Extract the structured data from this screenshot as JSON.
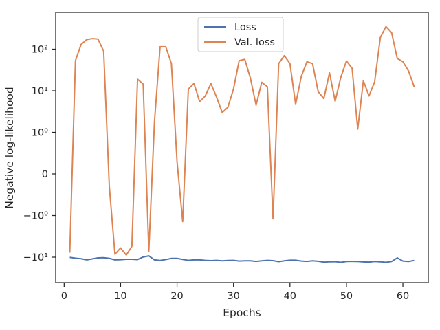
{
  "chart_data": {
    "type": "line",
    "xlabel": "Epochs",
    "ylabel": "Negative log-likelihood",
    "yscale": "symlog",
    "xlim": [
      -1.5,
      64.5
    ],
    "x_ticks": [
      0,
      10,
      20,
      30,
      40,
      50,
      60
    ],
    "y_ticks": [
      {
        "value": -10,
        "label": "−10¹"
      },
      {
        "value": -1,
        "label": "−10⁰"
      },
      {
        "value": 0,
        "label": "0"
      },
      {
        "value": 1,
        "label": "10⁰"
      },
      {
        "value": 10,
        "label": "10¹"
      },
      {
        "value": 100,
        "label": "10²"
      }
    ],
    "grid": false,
    "legend": "upper center",
    "colors": {
      "loss": "#4c72b0",
      "val_loss": "#dd8452",
      "axes": "#262626"
    },
    "x": [
      1,
      2,
      3,
      4,
      5,
      6,
      7,
      8,
      9,
      10,
      11,
      12,
      13,
      14,
      15,
      16,
      17,
      18,
      19,
      20,
      21,
      22,
      23,
      24,
      25,
      26,
      27,
      28,
      29,
      30,
      31,
      32,
      33,
      34,
      35,
      36,
      37,
      38,
      39,
      40,
      41,
      42,
      43,
      44,
      45,
      46,
      47,
      48,
      49,
      50,
      51,
      52,
      53,
      54,
      55,
      56,
      57,
      58,
      59,
      60,
      61,
      62
    ],
    "series": [
      {
        "name": "Loss",
        "values": [
          -10.1,
          -10.6,
          -10.9,
          -11.6,
          -11.0,
          -10.4,
          -10.3,
          -10.7,
          -11.6,
          -11.5,
          -11.2,
          -11.2,
          -11.4,
          -9.9,
          -9.3,
          -11.6,
          -12.0,
          -11.4,
          -10.7,
          -10.7,
          -11.3,
          -11.9,
          -11.6,
          -11.6,
          -11.9,
          -12.1,
          -11.9,
          -12.2,
          -12.0,
          -11.9,
          -12.4,
          -12.2,
          -12.2,
          -12.6,
          -12.2,
          -11.9,
          -12.1,
          -12.8,
          -12.2,
          -11.8,
          -11.8,
          -12.4,
          -12.6,
          -12.2,
          -12.5,
          -13.2,
          -12.9,
          -12.8,
          -13.3,
          -12.7,
          -12.6,
          -12.7,
          -13.0,
          -13.1,
          -12.7,
          -12.9,
          -13.3,
          -12.7,
          -10.4,
          -12.4,
          -12.7,
          -12.0
        ]
      },
      {
        "name": "Val. loss",
        "values": [
          -7.8,
          53,
          130,
          170,
          180,
          175,
          90,
          -0.3,
          -8.5,
          -6.0,
          -8.9,
          -5.5,
          19,
          14.5,
          -7.2,
          1.8,
          115,
          115,
          45,
          0.3,
          -1.4,
          11,
          15,
          5.5,
          7.5,
          15,
          7,
          3,
          4,
          11,
          53,
          57,
          20,
          4.5,
          16,
          12.5,
          -1.2,
          45,
          70,
          45,
          4.7,
          22,
          50,
          45,
          9.5,
          6.5,
          27,
          5.6,
          21,
          52,
          35,
          1.2,
          17.5,
          7.5,
          16.5,
          190,
          350,
          250,
          60,
          50,
          30,
          12.5
        ]
      }
    ]
  }
}
